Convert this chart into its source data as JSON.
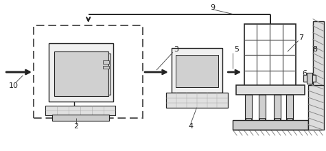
{
  "bg_color": "#ffffff",
  "line_color": "#222222",
  "fig_w": 4.75,
  "fig_h": 2.2,
  "dpi": 100,
  "label_fs": 8
}
